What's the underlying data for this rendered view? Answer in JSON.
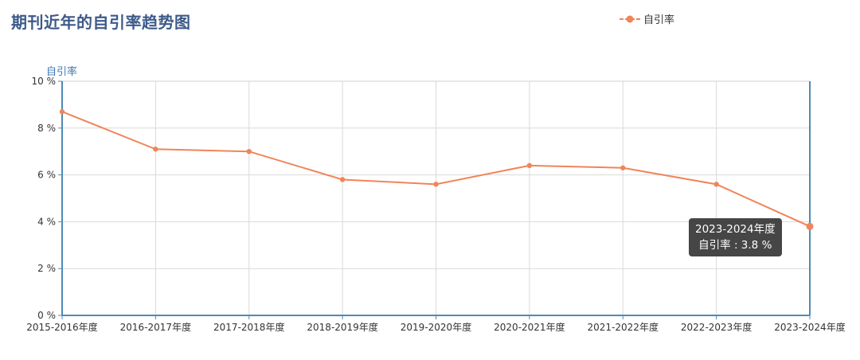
{
  "title": "期刊近年的自引率趋势图",
  "legend": {
    "label": "自引率"
  },
  "colors": {
    "series": "#f0855a",
    "axis": "#4f8ab5",
    "grid": "#d9d9d9",
    "title": "#3d5a8a"
  },
  "tooltip": {
    "category": "2023-2024年度",
    "text": "自引率 : 3.8 %"
  },
  "chart_data": {
    "type": "line",
    "title": "期刊近年的自引率趋势图",
    "ylabel": "自引率",
    "xlabel": "",
    "y_unit": "%",
    "ylim": [
      0,
      10
    ],
    "yticks": [
      0,
      2,
      4,
      6,
      8,
      10
    ],
    "categories": [
      "2015-2016年度",
      "2016-2017年度",
      "2017-2018年度",
      "2018-2019年度",
      "2019-2020年度",
      "2020-2021年度",
      "2021-2022年度",
      "2022-2023年度",
      "2023-2024年度"
    ],
    "series": [
      {
        "name": "自引率",
        "values": [
          8.7,
          7.1,
          7.0,
          5.8,
          5.6,
          6.4,
          6.3,
          5.6,
          3.8
        ]
      }
    ],
    "grid": true,
    "legend_position": "top-right"
  }
}
